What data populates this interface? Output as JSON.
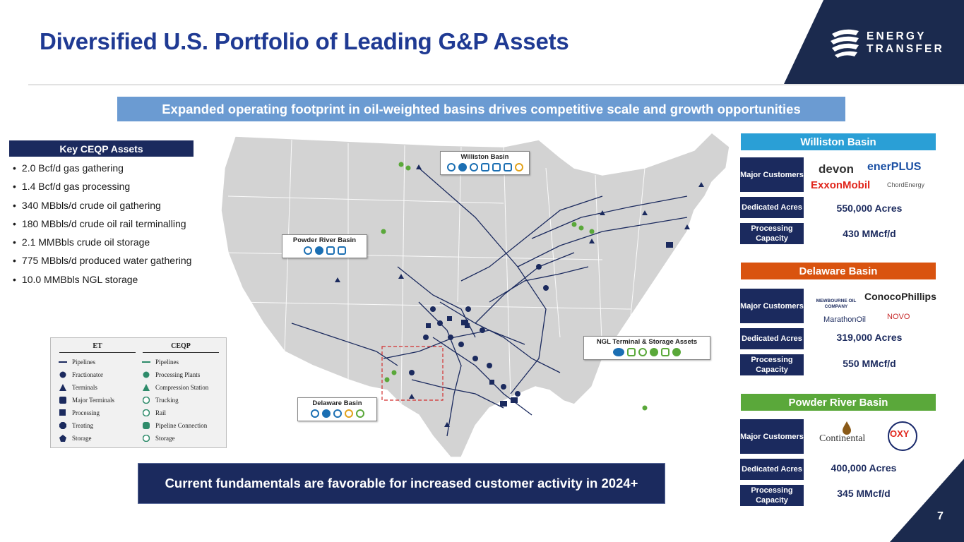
{
  "header": {
    "title": "Diversified U.S. Portfolio of Leading G&P Assets",
    "logo_line1": "ENERGY",
    "logo_line2": "TRANSFER"
  },
  "banner": "Expanded operating footprint in oil-weighted basins drives competitive scale and growth opportunities",
  "key_assets": {
    "heading": "Key CEQP Assets",
    "items": [
      "2.0 Bcf/d gas gathering",
      "1.4 Bcf/d gas processing",
      "340 MBbls/d crude oil gathering",
      "180 MBbls/d crude oil rail terminalling",
      "2.1 MMBbls crude oil storage",
      "775 MBbls/d produced water gathering",
      "10.0 MMBbls NGL storage"
    ]
  },
  "legend": {
    "et_header": "ET",
    "ceqp_header": "CEQP",
    "et_items": [
      "Pipelines",
      "Fractionator",
      "Terminals",
      "Major Terminals",
      "Processing",
      "Treating",
      "Storage"
    ],
    "ceqp_items": [
      "Pipelines",
      "Processing Plants",
      "Compression Station",
      "Trucking",
      "Rail",
      "Pipeline Connection",
      "Storage"
    ]
  },
  "map_callouts": {
    "williston": "Williston Basin",
    "powder_river": "Powder River Basin",
    "delaware": "Delaware Basin",
    "ngl": "NGL Terminal & Storage Assets"
  },
  "footer_message": "Current fundamentals are favorable for increased customer activity in 2024+",
  "basins": [
    {
      "name": "Williston Basin",
      "color": "#2a9fd6",
      "major_customers_label": "Major Customers",
      "customers": [
        "devon",
        "enerPLUS",
        "ExxonMobil",
        "ChordEnergy"
      ],
      "dedicated_acres_label": "Dedicated Acres",
      "dedicated_acres": "550,000 Acres",
      "processing_capacity_label": "Processing Capacity",
      "processing_capacity": "430 MMcf/d"
    },
    {
      "name": "Delaware Basin",
      "color": "#d9530f",
      "major_customers_label": "Major Customers",
      "customers": [
        "MEWBOURNE OIL COMPANY",
        "ConocoPhillips",
        "MarathonOil",
        "NOVO"
      ],
      "dedicated_acres_label": "Dedicated Acres",
      "dedicated_acres": "319,000 Acres",
      "processing_capacity_label": "Processing Capacity",
      "processing_capacity": "550 MMcf/d"
    },
    {
      "name": "Powder River Basin",
      "color": "#5aa83a",
      "major_customers_label": "Major Customers",
      "customers": [
        "Continental",
        "OXY"
      ],
      "dedicated_acres_label": "Dedicated Acres",
      "dedicated_acres": "400,000 Acres",
      "processing_capacity_label": "Processing Capacity",
      "processing_capacity": "345 MMcf/d"
    }
  ],
  "page_number": "7"
}
